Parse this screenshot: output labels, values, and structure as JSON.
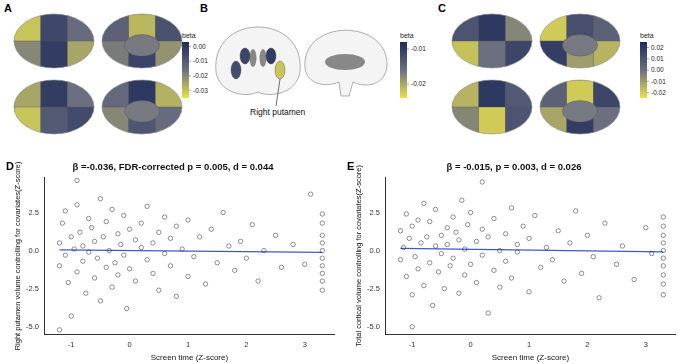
{
  "brain_maps": [
    {
      "label": "A",
      "colorbar_title": "beta",
      "colorbar_range": [
        -0.035,
        0.003
      ],
      "colorbar_ticks": [
        {
          "value": 0,
          "label": "0.00"
        },
        {
          "value": -0.01,
          "label": "-0.01"
        },
        {
          "value": -0.02,
          "label": "-0.02"
        },
        {
          "value": -0.03,
          "label": "-0.03"
        }
      ],
      "views": [
        [
          -0.03,
          -0.005,
          -0.015,
          -0.02,
          -0.002,
          -0.025
        ],
        [
          -0.012,
          -0.028,
          -0.008,
          -0.018,
          -0.004,
          -0.022
        ],
        [
          -0.025,
          -0.002,
          -0.016,
          -0.03,
          -0.01,
          -0.006
        ],
        [
          -0.014,
          -0.001,
          -0.027,
          -0.02,
          -0.009,
          -0.015
        ]
      ]
    },
    {
      "label": "B",
      "colorbar_title": "beta",
      "colorbar_range": [
        -0.024,
        -0.008
      ],
      "colorbar_ticks": [
        {
          "value": -0.01,
          "label": "-0.01"
        },
        {
          "value": -0.02,
          "label": "-0.02"
        }
      ],
      "annotation": "Right putamen",
      "views": [
        [
          -0.011,
          -0.012,
          -0.01,
          -0.022
        ],
        []
      ]
    },
    {
      "label": "C",
      "colorbar_title": "beta",
      "colorbar_range": [
        -0.025,
        0.025
      ],
      "colorbar_ticks": [
        {
          "value": 0.02,
          "label": "0.02"
        },
        {
          "value": 0.01,
          "label": "0.01"
        },
        {
          "value": 0,
          "label": "0.00"
        },
        {
          "value": -0.01,
          "label": "-0.01"
        },
        {
          "value": -0.02,
          "label": "-0.02"
        }
      ],
      "views": [
        [
          0.01,
          0.02,
          -0.005,
          -0.018,
          0,
          0.015
        ],
        [
          -0.02,
          0.012,
          0.005,
          0.018,
          -0.01,
          -0.015
        ],
        [
          -0.015,
          0.02,
          0.008,
          -0.005,
          -0.02,
          0.01
        ],
        [
          0.005,
          -0.02,
          0.015,
          -0.012,
          0.018,
          0
        ]
      ]
    }
  ],
  "chart_data": [
    {
      "panel": "D",
      "type": "scatter",
      "title": "β =-0.036, FDR-corrected p = 0.005, d = 0.044",
      "x_label": "Screen time (Z-score)",
      "y_label": "Right putamen volume controlling for covariates(Z-score)",
      "xlim": [
        -1.45,
        3.5
      ],
      "xticks": [
        -1,
        0,
        1,
        2,
        3
      ],
      "ylim": [
        -5.5,
        4.8
      ],
      "yticks": [
        {
          "value": -5,
          "label": "-5.0"
        },
        {
          "value": -2.5,
          "label": "-2.5"
        },
        {
          "value": 0,
          "label": "0.0"
        },
        {
          "value": 2.5,
          "label": "2.5"
        }
      ],
      "grid": false,
      "marker": "open_circle",
      "color": "#222222",
      "x": [
        -1.2,
        -1.2,
        -1.15,
        -1.1,
        -1.1,
        -1.05,
        -1.0,
        -1.0,
        -0.95,
        -0.9,
        -0.9,
        -0.85,
        -0.8,
        -0.8,
        -0.75,
        -0.7,
        -0.7,
        -0.65,
        -0.6,
        -0.6,
        -0.55,
        -0.5,
        -0.5,
        -0.45,
        -0.4,
        -0.4,
        -0.35,
        -0.3,
        -0.3,
        -0.25,
        -0.2,
        -0.2,
        -0.15,
        -0.1,
        -0.1,
        -0.05,
        0.0,
        0.0,
        0.1,
        0.1,
        0.2,
        0.2,
        0.3,
        0.3,
        0.4,
        0.4,
        0.5,
        0.5,
        0.6,
        0.6,
        0.7,
        0.7,
        0.8,
        0.8,
        0.9,
        1.0,
        1.0,
        1.1,
        1.2,
        1.3,
        1.4,
        1.5,
        1.6,
        1.7,
        1.8,
        1.9,
        2.0,
        2.1,
        2.2,
        2.3,
        2.5,
        2.6,
        2.8,
        3.0,
        3.1,
        3.3,
        3.3,
        3.3,
        3.3,
        3.3,
        3.3,
        3.3,
        3.3,
        3.3,
        3.3,
        -1.2,
        -0.9
      ],
      "values": [
        0.5,
        -1.0,
        1.8,
        -0.3,
        2.6,
        -2.1,
        0.9,
        -4.3,
        0.1,
        -1.4,
        3.0,
        1.2,
        -0.7,
        0.3,
        -2.8,
        2.1,
        -0.1,
        1.5,
        -1.8,
        0.6,
        -0.5,
        3.4,
        -3.3,
        0.9,
        -1.1,
        1.9,
        0.0,
        -2.4,
        2.7,
        -0.8,
        1.1,
        -1.6,
        0.4,
        -0.3,
        2.3,
        -3.8,
        1.4,
        -1.2,
        0.7,
        -2.0,
        0.2,
        1.8,
        -0.6,
        2.9,
        -1.5,
        0.5,
        1.2,
        -2.6,
        -0.2,
        2.2,
        0.8,
        -1.0,
        -3.0,
        1.6,
        0.1,
        -1.7,
        2.0,
        -0.4,
        0.9,
        -2.2,
        1.4,
        -0.8,
        2.5,
        0.3,
        -1.3,
        0.6,
        -0.5,
        1.7,
        -2.0,
        0.0,
        1.0,
        -1.1,
        0.4,
        -0.9,
        3.7,
        1.8,
        1.0,
        0.5,
        0.0,
        -0.5,
        -1.0,
        -1.5,
        -2.0,
        2.4,
        -2.6,
        -5.2,
        4.6
      ],
      "fit": {
        "x": [
          -1.2,
          3.3
        ],
        "values": [
          0.04,
          -0.12
        ],
        "color": "#3a5bd0"
      }
    },
    {
      "panel": "E",
      "type": "scatter",
      "title": "β = -0.015, p = 0.003, d = 0.026",
      "x_label": "Screen time (Z-score)",
      "y_label": "Total cortical volume controlling for covariates(Z-score)",
      "xlim": [
        -1.45,
        3.5
      ],
      "xticks": [
        -1,
        0,
        1,
        2,
        3
      ],
      "ylim": [
        -5.5,
        4.8
      ],
      "yticks": [
        {
          "value": -5,
          "label": "-5.0"
        },
        {
          "value": -2.5,
          "label": "-2.5"
        },
        {
          "value": 0,
          "label": "0.0"
        },
        {
          "value": 2.5,
          "label": "2.5"
        }
      ],
      "grid": false,
      "marker": "open_circle",
      "color": "#222222",
      "x": [
        -1.2,
        -1.2,
        -1.15,
        -1.1,
        -1.1,
        -1.05,
        -1.0,
        -1.0,
        -0.95,
        -0.9,
        -0.9,
        -0.85,
        -0.8,
        -0.8,
        -0.75,
        -0.7,
        -0.7,
        -0.65,
        -0.6,
        -0.6,
        -0.55,
        -0.5,
        -0.5,
        -0.45,
        -0.4,
        -0.4,
        -0.35,
        -0.3,
        -0.3,
        -0.25,
        -0.2,
        -0.2,
        -0.15,
        -0.1,
        -0.1,
        -0.05,
        0.0,
        0.0,
        0.1,
        0.1,
        0.2,
        0.2,
        0.3,
        0.3,
        0.4,
        0.4,
        0.5,
        0.5,
        0.6,
        0.6,
        0.7,
        0.7,
        0.8,
        0.8,
        0.9,
        1.0,
        1.0,
        1.1,
        1.2,
        1.3,
        1.4,
        1.5,
        1.6,
        1.7,
        1.8,
        1.9,
        2.0,
        2.1,
        2.2,
        2.3,
        2.5,
        2.6,
        2.8,
        3.0,
        3.1,
        3.3,
        3.3,
        3.3,
        3.3,
        3.3,
        3.3,
        3.3,
        3.3,
        3.3,
        3.3,
        -1.0,
        0.2
      ],
      "values": [
        -0.6,
        1.3,
        0.2,
        2.4,
        -1.7,
        0.8,
        -2.9,
        1.6,
        -0.4,
        2.0,
        -1.2,
        0.5,
        3.1,
        -2.3,
        0.9,
        -0.8,
        1.9,
        -3.6,
        0.3,
        2.7,
        -1.4,
        1.0,
        -0.2,
        -2.5,
        1.5,
        0.4,
        -1.0,
        2.2,
        -0.5,
        1.2,
        -2.8,
        0.7,
        3.3,
        -1.6,
        0.1,
        1.7,
        -0.9,
        2.5,
        -2.1,
        0.6,
        -0.3,
        1.4,
        -4.1,
        0.9,
        2.1,
        -1.3,
        0.0,
        -2.4,
        1.1,
        -0.7,
        2.8,
        -1.8,
        0.4,
        -0.1,
        1.6,
        -2.7,
        0.8,
        2.3,
        -1.1,
        0.2,
        -0.6,
        1.3,
        -2.0,
        0.5,
        2.6,
        -1.5,
        1.0,
        -0.4,
        -3.1,
        1.8,
        -0.9,
        0.3,
        -1.9,
        1.5,
        -0.2,
        2.2,
        1.6,
        1.0,
        0.5,
        0.0,
        -0.5,
        -1.0,
        -1.6,
        -2.2,
        -2.9,
        -5.0,
        4.5
      ],
      "fit": {
        "x": [
          -1.2,
          3.3
        ],
        "values": [
          0.15,
          -0.09
        ],
        "color": "#3a5bd0"
      }
    }
  ]
}
